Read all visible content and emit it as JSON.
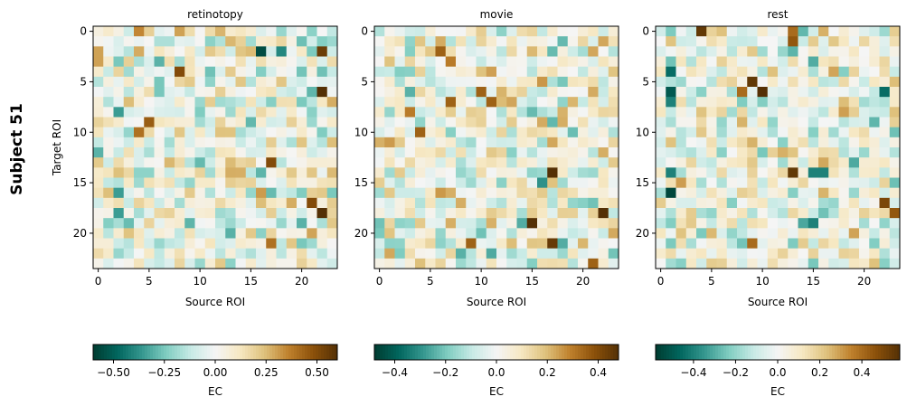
{
  "figure": {
    "suptitle": "Subject 51",
    "shared_ylabel": "Target ROI"
  },
  "chart_data": [
    {
      "type": "heatmap",
      "title": "retinotopy",
      "xlabel": "Source ROI",
      "ylabel": "Target ROI",
      "n": 24,
      "xticks": [
        0,
        5,
        10,
        15,
        20
      ],
      "yticks": [
        0,
        5,
        10,
        15,
        20
      ],
      "colormap": "BrBG_r",
      "colorbar": {
        "label": "EC",
        "vmin": -0.6,
        "vmax": 0.6,
        "ticks": [
          -0.5,
          -0.25,
          0.0,
          0.25,
          0.5
        ],
        "tick_labels": [
          "−0.50",
          "−0.25",
          "0.00",
          "0.25",
          "0.50"
        ]
      },
      "seed": 51,
      "strong_cells": [
        {
          "row": 2,
          "col": 16,
          "value": -0.55
        },
        {
          "row": 2,
          "col": 18,
          "value": -0.4
        },
        {
          "row": 2,
          "col": 22,
          "value": 0.55
        },
        {
          "row": 2,
          "col": 0,
          "value": 0.3
        },
        {
          "row": 0,
          "col": 4,
          "value": 0.35
        },
        {
          "row": 0,
          "col": 8,
          "value": 0.3
        },
        {
          "row": 3,
          "col": 6,
          "value": -0.3
        },
        {
          "row": 4,
          "col": 8,
          "value": 0.5
        },
        {
          "row": 6,
          "col": 22,
          "value": 0.6
        },
        {
          "row": 8,
          "col": 2,
          "value": -0.35
        },
        {
          "row": 9,
          "col": 5,
          "value": 0.45
        },
        {
          "row": 10,
          "col": 4,
          "value": 0.4
        },
        {
          "row": 13,
          "col": 17,
          "value": 0.5
        },
        {
          "row": 16,
          "col": 2,
          "value": -0.35
        },
        {
          "row": 17,
          "col": 21,
          "value": 0.5
        },
        {
          "row": 18,
          "col": 2,
          "value": -0.35
        },
        {
          "row": 18,
          "col": 22,
          "value": 0.6
        },
        {
          "row": 21,
          "col": 17,
          "value": 0.4
        }
      ]
    },
    {
      "type": "heatmap",
      "title": "movie",
      "xlabel": "Source ROI",
      "ylabel": "",
      "n": 24,
      "xticks": [
        0,
        5,
        10,
        15,
        20
      ],
      "yticks": [
        0,
        5,
        10,
        15,
        20
      ],
      "colormap": "BrBG_r",
      "colorbar": {
        "label": "EC",
        "vmin": -0.48,
        "vmax": 0.48,
        "ticks": [
          -0.4,
          -0.2,
          0.0,
          0.2,
          0.4
        ],
        "tick_labels": [
          "−0.4",
          "−0.2",
          "0.0",
          "0.2",
          "0.4"
        ]
      },
      "seed": 77,
      "strong_cells": [
        {
          "row": 2,
          "col": 6,
          "value": 0.35
        },
        {
          "row": 3,
          "col": 7,
          "value": 0.3
        },
        {
          "row": 6,
          "col": 10,
          "value": 0.35
        },
        {
          "row": 7,
          "col": 11,
          "value": 0.35
        },
        {
          "row": 7,
          "col": 7,
          "value": 0.35
        },
        {
          "row": 8,
          "col": 3,
          "value": 0.3
        },
        {
          "row": 10,
          "col": 4,
          "value": 0.35
        },
        {
          "row": 14,
          "col": 17,
          "value": 0.48
        },
        {
          "row": 15,
          "col": 16,
          "value": -0.3
        },
        {
          "row": 19,
          "col": 15,
          "value": 0.48
        },
        {
          "row": 18,
          "col": 22,
          "value": 0.48
        },
        {
          "row": 21,
          "col": 17,
          "value": 0.45
        },
        {
          "row": 21,
          "col": 9,
          "value": 0.35
        },
        {
          "row": 23,
          "col": 21,
          "value": 0.35
        },
        {
          "row": 19,
          "col": 14,
          "value": -0.25
        },
        {
          "row": 21,
          "col": 18,
          "value": -0.25
        }
      ]
    },
    {
      "type": "heatmap",
      "title": "rest",
      "xlabel": "Source ROI",
      "ylabel": "",
      "n": 24,
      "xticks": [
        0,
        5,
        10,
        15,
        20
      ],
      "yticks": [
        0,
        5,
        10,
        15,
        20
      ],
      "colormap": "BrBG_r",
      "colorbar": {
        "label": "EC",
        "vmin": -0.58,
        "vmax": 0.58,
        "ticks": [
          -0.4,
          -0.2,
          0.0,
          0.2,
          0.4
        ],
        "tick_labels": [
          "−0.4",
          "−0.2",
          "0.0",
          "0.2",
          "0.4"
        ]
      },
      "seed": 123,
      "strong_cells": [
        {
          "row": 0,
          "col": 4,
          "value": 0.55
        },
        {
          "row": 0,
          "col": 13,
          "value": 0.4
        },
        {
          "row": 1,
          "col": 13,
          "value": 0.45
        },
        {
          "row": 4,
          "col": 1,
          "value": -0.45
        },
        {
          "row": 5,
          "col": 9,
          "value": 0.55
        },
        {
          "row": 6,
          "col": 1,
          "value": -0.5
        },
        {
          "row": 6,
          "col": 10,
          "value": 0.58
        },
        {
          "row": 6,
          "col": 8,
          "value": 0.4
        },
        {
          "row": 6,
          "col": 22,
          "value": -0.45
        },
        {
          "row": 7,
          "col": 1,
          "value": -0.4
        },
        {
          "row": 14,
          "col": 13,
          "value": 0.55
        },
        {
          "row": 14,
          "col": 15,
          "value": -0.4
        },
        {
          "row": 14,
          "col": 16,
          "value": -0.4
        },
        {
          "row": 14,
          "col": 1,
          "value": -0.4
        },
        {
          "row": 16,
          "col": 1,
          "value": -0.55
        },
        {
          "row": 17,
          "col": 22,
          "value": 0.5
        },
        {
          "row": 18,
          "col": 23,
          "value": 0.45
        },
        {
          "row": 19,
          "col": 15,
          "value": -0.4
        },
        {
          "row": 21,
          "col": 9,
          "value": 0.4
        }
      ]
    }
  ]
}
